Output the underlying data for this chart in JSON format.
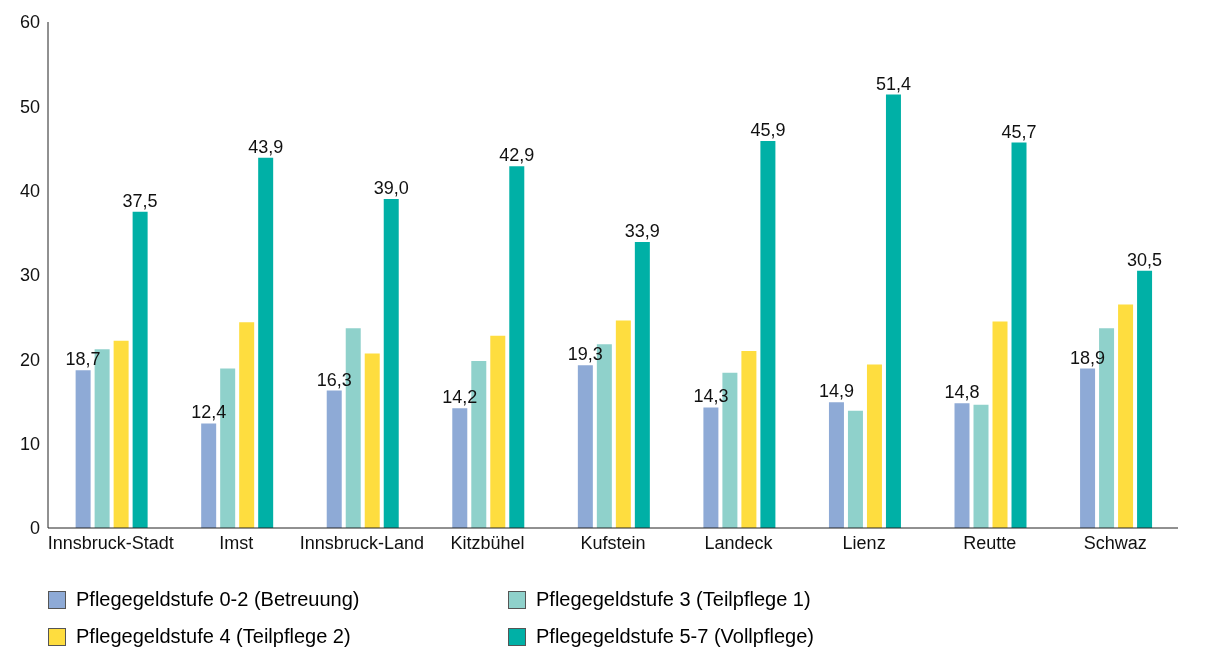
{
  "chart_data": {
    "type": "bar",
    "categories": [
      "Innsbruck-Stadt",
      "Imst",
      "Innsbruck-Land",
      "Kitzbühel",
      "Kufstein",
      "Landeck",
      "Lienz",
      "Reutte",
      "Schwaz"
    ],
    "series": [
      {
        "name": "Pflegegeldstufe 0-2 (Betreuung)",
        "color": "#8eaad6",
        "values": [
          18.7,
          12.4,
          16.3,
          14.2,
          19.3,
          14.3,
          14.9,
          14.8,
          18.9
        ],
        "value_labels": [
          "18,7",
          "12,4",
          "16,3",
          "14,2",
          "19,3",
          "14,3",
          "14,9",
          "14,8",
          "18,9"
        ]
      },
      {
        "name": "Pflegegeldstufe 3 (Teilpflege 1)",
        "color": "#8fd1cb",
        "values": [
          21.2,
          18.9,
          23.7,
          19.8,
          21.8,
          18.4,
          13.9,
          14.6,
          23.7
        ]
      },
      {
        "name": "Pflegegeldstufe 4 (Teilpflege 2)",
        "color": "#fedd3f",
        "values": [
          22.2,
          24.4,
          20.7,
          22.8,
          24.6,
          21.0,
          19.4,
          24.5,
          26.5
        ]
      },
      {
        "name": "Pflegegeldstufe 5-7 (Vollpflege)",
        "color": "#00b0a6",
        "values": [
          37.5,
          43.9,
          39.0,
          42.9,
          33.9,
          45.9,
          51.4,
          45.7,
          30.5
        ],
        "value_labels": [
          "37,5",
          "43,9",
          "39,0",
          "42,9",
          "33,9",
          "45,9",
          "51,4",
          "45,7",
          "30,5"
        ]
      }
    ],
    "ylim": [
      0,
      60
    ],
    "yticks": [
      0,
      10,
      20,
      30,
      40,
      50,
      60
    ],
    "grid": false,
    "legend": "bottom"
  }
}
